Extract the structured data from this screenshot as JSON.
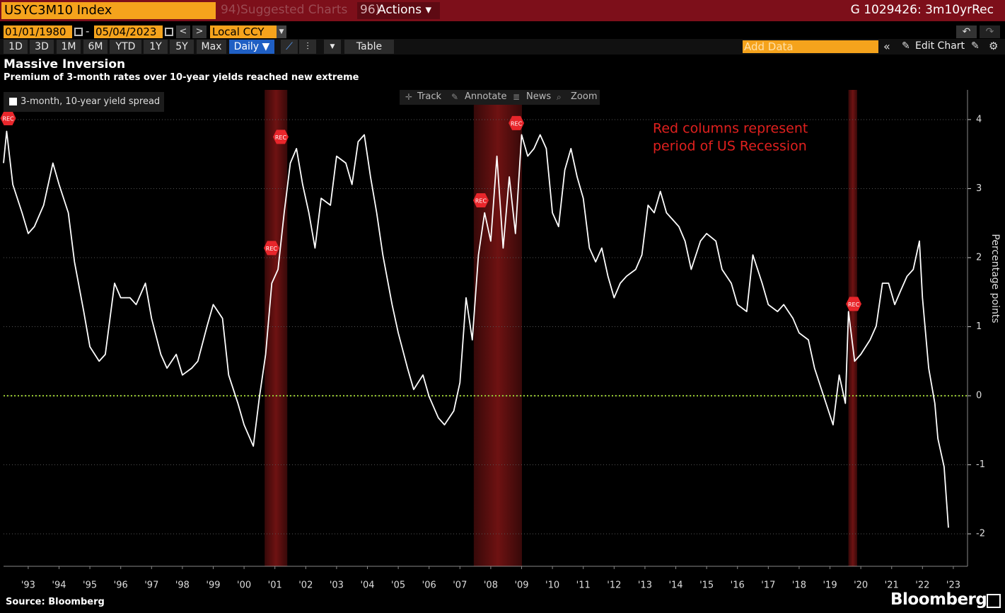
{
  "terminal": {
    "ticker": "USYC3M10 Index",
    "suggested_prefix": "94)",
    "suggested": "Suggested Charts",
    "actions_prefix": "96)",
    "actions": "Actions ▾",
    "chart_id": "G 1029426: 3m10yrRec",
    "start_date": "01/01/1980",
    "date_sep": "-",
    "end_date": "05/04/2023",
    "currency": "Local CCY",
    "ranges": [
      "1D",
      "3D",
      "1M",
      "6M",
      "YTD",
      "1Y",
      "5Y",
      "Max"
    ],
    "frequency": "Daily ▼",
    "table": "Table",
    "add_data": "Add Data",
    "edit_chart": "Edit Chart",
    "tools": [
      "Track",
      "Annotate",
      "News",
      "Zoom"
    ],
    "source": "Source: Bloomberg",
    "brand": "Bloomberg"
  },
  "chart_data": {
    "type": "line",
    "title": "Massive Inversion",
    "subtitle": "Premium of 3-month rates over 10-year yields reached new extreme",
    "y_label": "Percentage points",
    "xlim": [
      1992.7,
      2023.96
    ],
    "ylim": [
      -2.47,
      4.43
    ],
    "yticks": [
      -2,
      -1,
      0,
      1,
      2,
      3,
      4
    ],
    "grid": true,
    "reference_line": {
      "value": 0,
      "color": "#9acd32"
    },
    "xticks": [
      {
        "value": 1993.5,
        "label": "'93"
      },
      {
        "value": 1994.5,
        "label": "'94"
      },
      {
        "value": 1995.5,
        "label": "'95"
      },
      {
        "value": 1996.5,
        "label": "'96"
      },
      {
        "value": 1997.5,
        "label": "'97"
      },
      {
        "value": 1998.5,
        "label": "'98"
      },
      {
        "value": 1999.5,
        "label": "'99"
      },
      {
        "value": 2000.5,
        "label": "'00"
      },
      {
        "value": 2001.5,
        "label": "'01"
      },
      {
        "value": 2002.5,
        "label": "'02"
      },
      {
        "value": 2003.5,
        "label": "'03"
      },
      {
        "value": 2004.5,
        "label": "'04"
      },
      {
        "value": 2005.5,
        "label": "'05"
      },
      {
        "value": 2006.5,
        "label": "'06"
      },
      {
        "value": 2007.5,
        "label": "'07"
      },
      {
        "value": 2008.5,
        "label": "'08"
      },
      {
        "value": 2009.5,
        "label": "'09"
      },
      {
        "value": 2010.5,
        "label": "'10"
      },
      {
        "value": 2011.5,
        "label": "'11"
      },
      {
        "value": 2012.5,
        "label": "'12"
      },
      {
        "value": 2013.5,
        "label": "'13"
      },
      {
        "value": 2014.5,
        "label": "'14"
      },
      {
        "value": 2015.5,
        "label": "'15"
      },
      {
        "value": 2016.5,
        "label": "'16"
      },
      {
        "value": 2017.5,
        "label": "'17"
      },
      {
        "value": 2018.5,
        "label": "'18"
      },
      {
        "value": 2019.5,
        "label": "'19"
      },
      {
        "value": 2020.5,
        "label": "'20"
      },
      {
        "value": 2021.5,
        "label": "'21"
      },
      {
        "value": 2022.5,
        "label": "'22"
      },
      {
        "value": 2023.5,
        "label": "'23"
      }
    ],
    "recessions": [
      [
        2001.17,
        2001.9
      ],
      [
        2007.95,
        2009.51
      ],
      [
        2020.1,
        2020.38
      ]
    ],
    "recession_color": "#6e1212",
    "annotation": [
      "Red columns represent",
      "period of US Recession"
    ],
    "annotation_color": "#e0201e",
    "markers": [
      {
        "label": "REC",
        "x": 1992.85,
        "y": 4.02
      },
      {
        "label": "REC",
        "x": 2001.39,
        "y": 2.14
      },
      {
        "label": "REC",
        "x": 2001.69,
        "y": 3.75
      },
      {
        "label": "REC",
        "x": 2008.18,
        "y": 2.83
      },
      {
        "label": "REC",
        "x": 2009.33,
        "y": 3.95
      },
      {
        "label": "REC",
        "x": 2020.27,
        "y": 1.33
      }
    ],
    "x": [
      1992.7,
      1992.8,
      1993.0,
      1993.3,
      1993.5,
      1993.7,
      1994.0,
      1994.3,
      1994.5,
      1994.8,
      1995.0,
      1995.3,
      1995.5,
      1995.8,
      1996.0,
      1996.3,
      1996.5,
      1996.8,
      1997.0,
      1997.3,
      1997.5,
      1997.8,
      1998.0,
      1998.3,
      1998.5,
      1998.8,
      1999.0,
      1999.3,
      1999.5,
      1999.8,
      2000.0,
      2000.3,
      2000.5,
      2000.8,
      2001.0,
      2001.2,
      2001.4,
      2001.6,
      2001.8,
      2002.0,
      2002.2,
      2002.4,
      2002.6,
      2002.8,
      2003.0,
      2003.3,
      2003.5,
      2003.8,
      2004.0,
      2004.2,
      2004.4,
      2004.6,
      2004.8,
      2005.0,
      2005.3,
      2005.5,
      2005.8,
      2006.0,
      2006.3,
      2006.5,
      2006.8,
      2007.0,
      2007.3,
      2007.5,
      2007.7,
      2007.9,
      2008.1,
      2008.3,
      2008.5,
      2008.7,
      2008.9,
      2009.1,
      2009.3,
      2009.5,
      2009.7,
      2009.9,
      2010.1,
      2010.3,
      2010.5,
      2010.7,
      2010.9,
      2011.1,
      2011.3,
      2011.5,
      2011.7,
      2011.9,
      2012.1,
      2012.3,
      2012.5,
      2012.7,
      2012.9,
      2013.2,
      2013.4,
      2013.6,
      2013.8,
      2014.0,
      2014.2,
      2014.4,
      2014.6,
      2014.8,
      2015.0,
      2015.3,
      2015.5,
      2015.8,
      2016.0,
      2016.3,
      2016.5,
      2016.8,
      2017.0,
      2017.3,
      2017.5,
      2017.8,
      2018.0,
      2018.3,
      2018.5,
      2018.8,
      2019.0,
      2019.3,
      2019.6,
      2019.8,
      2020.0,
      2020.1,
      2020.3,
      2020.5,
      2020.8,
      2021.0,
      2021.2,
      2021.4,
      2021.6,
      2021.8,
      2022.0,
      2022.2,
      2022.4,
      2022.5,
      2022.7,
      2022.9,
      2023.0,
      2023.2,
      2023.34
    ],
    "series": [
      {
        "name": "3-month, 10-year yield spread",
        "color": "#ffffff",
        "values": [
          3.37,
          3.83,
          3.06,
          2.65,
          2.35,
          2.45,
          2.76,
          3.37,
          3.06,
          2.65,
          1.94,
          1.22,
          0.71,
          0.5,
          0.6,
          1.63,
          1.42,
          1.42,
          1.32,
          1.63,
          1.12,
          0.6,
          0.4,
          0.6,
          0.3,
          0.4,
          0.5,
          1.01,
          1.32,
          1.12,
          0.3,
          -0.11,
          -0.42,
          -0.73,
          -0.01,
          0.6,
          1.63,
          1.83,
          2.65,
          3.37,
          3.58,
          3.06,
          2.65,
          2.14,
          2.86,
          2.76,
          3.47,
          3.37,
          3.06,
          3.68,
          3.78,
          3.17,
          2.65,
          2.04,
          1.32,
          0.91,
          0.4,
          0.09,
          0.3,
          -0.01,
          -0.32,
          -0.42,
          -0.22,
          0.19,
          1.42,
          0.81,
          2.04,
          2.65,
          2.24,
          3.47,
          2.14,
          3.17,
          2.35,
          3.78,
          3.47,
          3.58,
          3.78,
          3.58,
          2.65,
          2.45,
          3.27,
          3.58,
          3.17,
          2.86,
          2.14,
          1.94,
          2.14,
          1.73,
          1.42,
          1.63,
          1.73,
          1.83,
          2.04,
          2.76,
          2.65,
          2.96,
          2.65,
          2.55,
          2.45,
          2.24,
          1.83,
          2.24,
          2.35,
          2.24,
          1.83,
          1.63,
          1.32,
          1.22,
          2.04,
          1.63,
          1.32,
          1.22,
          1.32,
          1.12,
          0.91,
          0.81,
          0.4,
          -0.01,
          -0.42,
          0.3,
          -0.11,
          1.22,
          0.5,
          0.6,
          0.81,
          1.01,
          1.63,
          1.63,
          1.32,
          1.53,
          1.73,
          1.83,
          2.24,
          1.42,
          0.4,
          -0.11,
          -0.62,
          -1.03,
          -1.91
        ]
      }
    ]
  }
}
